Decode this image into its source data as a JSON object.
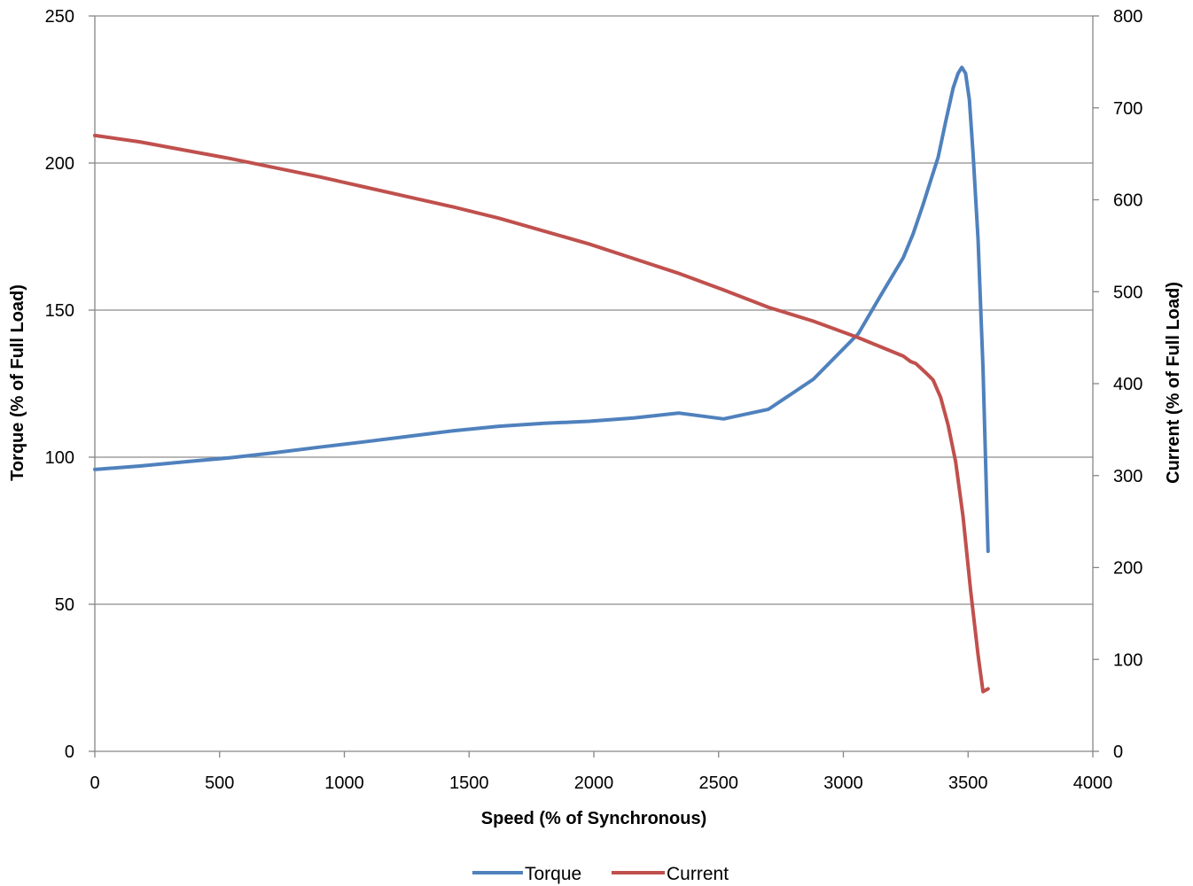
{
  "chart_data": {
    "type": "line",
    "xlabel": "Speed (% of Synchronous)",
    "ylabel": "Torque (% of Full Load)",
    "y2label": "Current (% of Full Load)",
    "xlim": [
      0,
      4000
    ],
    "ylim": [
      0,
      250
    ],
    "y2lim": [
      0,
      800
    ],
    "xticks": [
      "0",
      "500",
      "1000",
      "1500",
      "2000",
      "2500",
      "3000",
      "3500",
      "4000"
    ],
    "yticks": [
      "0",
      "50",
      "100",
      "150",
      "200",
      "250"
    ],
    "y2ticks": [
      "0",
      "100",
      "200",
      "300",
      "400",
      "500",
      "600",
      "700",
      "800"
    ],
    "grid": "horizontal major lines",
    "legend_position": "bottom",
    "series": [
      {
        "name": "Torque",
        "axis": "left",
        "color": "#4F81BD",
        "x": [
          0,
          180,
          360,
          540,
          720,
          900,
          1080,
          1260,
          1440,
          1620,
          1800,
          1980,
          2160,
          2340,
          2520,
          2700,
          2880,
          3060,
          3150,
          3240,
          3280,
          3320,
          3350,
          3380,
          3410,
          3440,
          3460,
          3475,
          3490,
          3505,
          3520,
          3540,
          3560,
          3580
        ],
        "values": [
          95.8,
          97,
          98.4,
          99.8,
          101.5,
          103.4,
          105.2,
          107.1,
          109,
          110.5,
          111.5,
          112.2,
          113.3,
          115,
          113,
          116.3,
          126.5,
          142,
          155,
          167.8,
          176,
          186,
          194,
          202,
          214,
          225.5,
          230.5,
          232.5,
          230.5,
          221.5,
          203,
          174,
          130,
          68
        ]
      },
      {
        "name": "Current",
        "axis": "right",
        "color": "#C0504D",
        "x": [
          0,
          180,
          360,
          540,
          720,
          900,
          1080,
          1260,
          1440,
          1620,
          1800,
          1980,
          2160,
          2340,
          2520,
          2700,
          2880,
          3060,
          3150,
          3240,
          3270,
          3290,
          3310,
          3330,
          3360,
          3390,
          3420,
          3450,
          3480,
          3510,
          3540,
          3560,
          3580
        ],
        "values": [
          670,
          663,
          654,
          645,
          635,
          625,
          614,
          603,
          592,
          580,
          566,
          552,
          536,
          520,
          502,
          483,
          468,
          450,
          440,
          430,
          424,
          422,
          417,
          412,
          404,
          385,
          355,
          315,
          255,
          175,
          105,
          65,
          68
        ]
      }
    ]
  }
}
